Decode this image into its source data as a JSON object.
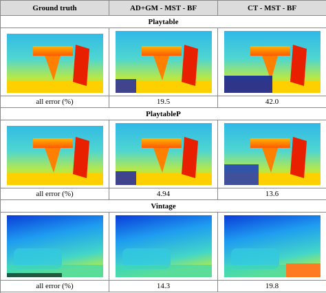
{
  "header": [
    "Ground truth",
    "AD+GM - MST - BF",
    "CT - MST - BF"
  ],
  "sections": [
    {
      "title": "Playtable",
      "error_label": "all error (%)",
      "errors": [
        "19.5",
        "42.0"
      ]
    },
    {
      "title": "PlaytableP",
      "error_label": "all error (%)",
      "errors": [
        "4.94",
        "13.6"
      ]
    },
    {
      "title": "Vintage",
      "error_label": "all error (%)",
      "errors": [
        "14.3",
        "19.8"
      ]
    }
  ]
}
